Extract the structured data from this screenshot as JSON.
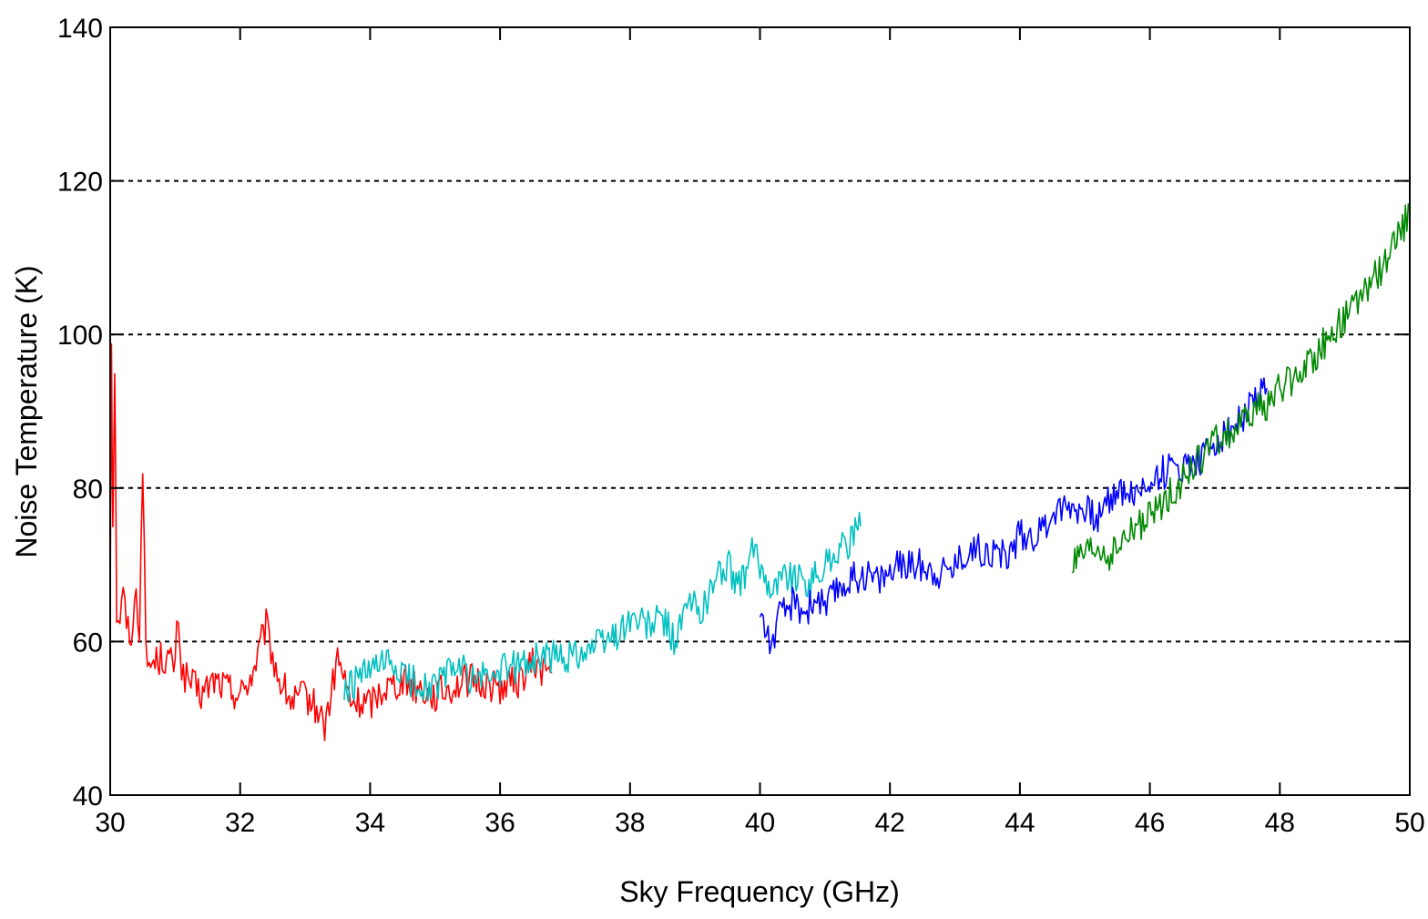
{
  "chart_data": {
    "type": "line",
    "title": "",
    "xlabel": "Sky Frequency (GHz)",
    "ylabel": "Noise Temperature (K)",
    "xlim": [
      30,
      50
    ],
    "ylim": [
      40,
      140
    ],
    "xticks": [
      "30",
      "32",
      "34",
      "36",
      "38",
      "40",
      "42",
      "44",
      "46",
      "48",
      "50"
    ],
    "yticks": [
      "40",
      "60",
      "80",
      "100",
      "120",
      "140"
    ],
    "grid": "horizontal dashed at 60, 80, 100, 120",
    "legend": "none",
    "series": [
      {
        "color": "#ff0000",
        "points": [
          [
            30.0,
            65
          ],
          [
            30.02,
            100
          ],
          [
            30.04,
            75
          ],
          [
            30.07,
            96
          ],
          [
            30.1,
            64
          ],
          [
            30.15,
            63
          ],
          [
            30.2,
            66
          ],
          [
            30.3,
            60
          ],
          [
            30.4,
            66
          ],
          [
            30.45,
            62
          ],
          [
            30.5,
            84
          ],
          [
            30.55,
            58
          ],
          [
            30.6,
            57
          ],
          [
            30.8,
            58
          ],
          [
            31.0,
            57
          ],
          [
            31.05,
            64
          ],
          [
            31.1,
            56
          ],
          [
            31.2,
            55
          ],
          [
            31.4,
            53
          ],
          [
            31.6,
            55
          ],
          [
            31.8,
            54
          ],
          [
            32.0,
            53
          ],
          [
            32.2,
            56
          ],
          [
            32.4,
            62
          ],
          [
            32.5,
            58
          ],
          [
            32.6,
            55
          ],
          [
            32.8,
            52
          ],
          [
            33.0,
            53
          ],
          [
            33.2,
            51
          ],
          [
            33.3,
            49
          ],
          [
            33.4,
            53
          ],
          [
            33.5,
            58
          ],
          [
            33.7,
            52
          ],
          [
            34.0,
            52
          ],
          [
            34.2,
            54
          ],
          [
            34.5,
            55
          ],
          [
            35.0,
            53
          ],
          [
            35.5,
            55
          ],
          [
            36.0,
            54
          ],
          [
            36.3,
            55
          ],
          [
            36.5,
            57
          ],
          [
            36.8,
            56
          ]
        ]
      },
      {
        "color": "#00c0c0",
        "points": [
          [
            33.6,
            53
          ],
          [
            33.8,
            55
          ],
          [
            34.0,
            56
          ],
          [
            34.3,
            57
          ],
          [
            34.6,
            55
          ],
          [
            35.0,
            54
          ],
          [
            35.3,
            57
          ],
          [
            35.6,
            55
          ],
          [
            36.0,
            56
          ],
          [
            36.3,
            57
          ],
          [
            36.6,
            58
          ],
          [
            37.0,
            58
          ],
          [
            37.3,
            59
          ],
          [
            37.6,
            60
          ],
          [
            37.8,
            61
          ],
          [
            38.0,
            63
          ],
          [
            38.3,
            62
          ],
          [
            38.5,
            63
          ],
          [
            38.7,
            60
          ],
          [
            38.9,
            65
          ],
          [
            39.1,
            64
          ],
          [
            39.3,
            68
          ],
          [
            39.5,
            70
          ],
          [
            39.7,
            67
          ],
          [
            39.9,
            72
          ],
          [
            40.0,
            70
          ],
          [
            40.2,
            67
          ],
          [
            40.4,
            69
          ],
          [
            40.6,
            68
          ],
          [
            40.8,
            68
          ],
          [
            41.0,
            70
          ],
          [
            41.2,
            72
          ],
          [
            41.4,
            73
          ],
          [
            41.55,
            75
          ]
        ]
      },
      {
        "color": "#0000ff",
        "points": [
          [
            40.0,
            64
          ],
          [
            40.1,
            61
          ],
          [
            40.2,
            60
          ],
          [
            40.3,
            63
          ],
          [
            40.5,
            65
          ],
          [
            40.7,
            64
          ],
          [
            40.9,
            66
          ],
          [
            41.0,
            64
          ],
          [
            41.2,
            67
          ],
          [
            41.4,
            68
          ],
          [
            41.6,
            69
          ],
          [
            41.8,
            68
          ],
          [
            42.0,
            69
          ],
          [
            42.2,
            70
          ],
          [
            42.5,
            70
          ],
          [
            42.8,
            69
          ],
          [
            43.0,
            70
          ],
          [
            43.2,
            72
          ],
          [
            43.5,
            72
          ],
          [
            43.8,
            71
          ],
          [
            44.0,
            74
          ],
          [
            44.3,
            74
          ],
          [
            44.5,
            77
          ],
          [
            44.8,
            78
          ],
          [
            45.0,
            77
          ],
          [
            45.2,
            76
          ],
          [
            45.4,
            79
          ],
          [
            45.6,
            80
          ],
          [
            45.8,
            79
          ],
          [
            46.0,
            81
          ],
          [
            46.2,
            82
          ],
          [
            46.5,
            83
          ],
          [
            46.8,
            84
          ],
          [
            47.0,
            86
          ],
          [
            47.3,
            88
          ],
          [
            47.6,
            91
          ],
          [
            47.8,
            93
          ]
        ]
      },
      {
        "color": "#008800",
        "points": [
          [
            44.8,
            70
          ],
          [
            45.0,
            71
          ],
          [
            45.2,
            72
          ],
          [
            45.4,
            71
          ],
          [
            45.6,
            73
          ],
          [
            45.8,
            75
          ],
          [
            46.0,
            76
          ],
          [
            46.2,
            78
          ],
          [
            46.4,
            80
          ],
          [
            46.6,
            82
          ],
          [
            46.8,
            84
          ],
          [
            47.0,
            86
          ],
          [
            47.2,
            87
          ],
          [
            47.4,
            88
          ],
          [
            47.6,
            90
          ],
          [
            47.8,
            91
          ],
          [
            48.0,
            93
          ],
          [
            48.2,
            94
          ],
          [
            48.4,
            96
          ],
          [
            48.6,
            98
          ],
          [
            48.8,
            100
          ],
          [
            49.0,
            102
          ],
          [
            49.2,
            104
          ],
          [
            49.4,
            107
          ],
          [
            49.6,
            109
          ],
          [
            49.8,
            112
          ],
          [
            50.0,
            116
          ]
        ]
      }
    ]
  }
}
